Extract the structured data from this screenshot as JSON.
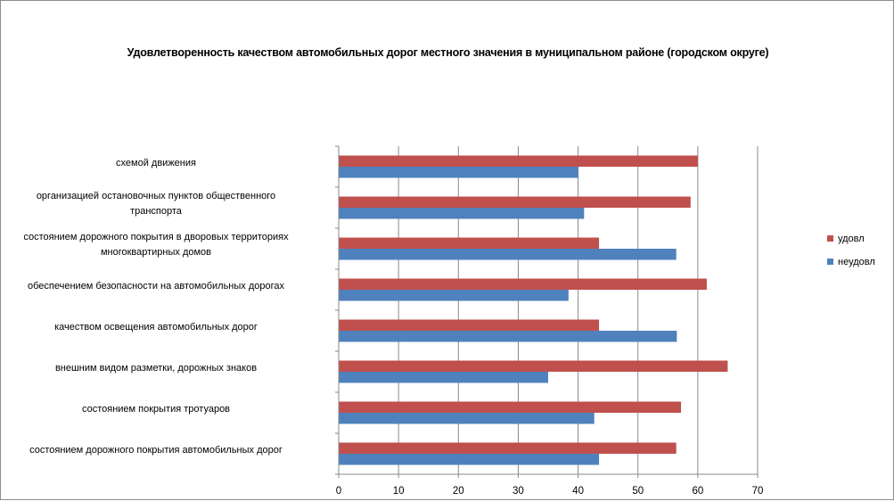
{
  "chart_data": {
    "type": "bar",
    "orientation": "horizontal",
    "title": "Удовлетворенность качеством автомобильных дорог местного значения в  муниципальном районе (городском округе)",
    "categories": [
      "схемой движения",
      "организацией остановочных пунктов общественного транспорта",
      "состоянием дорожного покрытия  в дворовых территориях многоквартирных домов",
      "обеспечением  безопасности на автомобильных дорогах",
      "качеством  освещения  автомобильных дорог",
      "внешним  видом разметки, дорожных знаков",
      "состоянием покрытия тротуаров",
      "состоянием дорожного покрытия автомобильных дорог"
    ],
    "category_lines": [
      [
        "схемой движения"
      ],
      [
        "организацией остановочных пунктов общественного",
        "транспорта"
      ],
      [
        "состоянием дорожного покрытия  в дворовых территориях",
        "многоквартирных домов"
      ],
      [
        "обеспечением  безопасности на автомобильных дорогах"
      ],
      [
        "качеством  освещения  автомобильных дорог"
      ],
      [
        "внешним  видом разметки, дорожных знаков"
      ],
      [
        "состоянием покрытия тротуаров"
      ],
      [
        "состоянием дорожного покрытия автомобильных дорог"
      ]
    ],
    "series": [
      {
        "name": "удовл",
        "color": "#c0504d",
        "values": [
          60,
          58.8,
          43.5,
          61.5,
          43.5,
          65,
          57.2,
          56.4
        ]
      },
      {
        "name": "неудовл",
        "color": "#4f81bd",
        "values": [
          40,
          41,
          56.4,
          38.4,
          56.5,
          35,
          42.7,
          43.5
        ]
      }
    ],
    "xlim": [
      0,
      70
    ],
    "xticks": [
      0,
      10,
      20,
      30,
      40,
      50,
      60,
      70
    ],
    "xlabel": "",
    "ylabel": "",
    "grid": true,
    "legend": "right"
  }
}
